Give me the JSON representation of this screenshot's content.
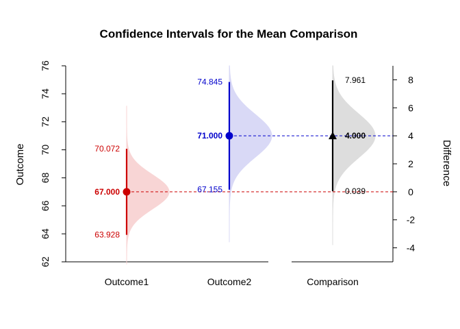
{
  "chart_data": {
    "type": "interval",
    "title": "Confidence Intervals for the Mean Comparison",
    "ylabel": "Outcome",
    "ylabel_right": "Difference",
    "ylim": [
      62,
      76
    ],
    "yticks": [
      "62",
      "64",
      "66",
      "68",
      "70",
      "72",
      "74",
      "76"
    ],
    "ylim_right": [
      -5,
      9
    ],
    "yticks_right": [
      "-4",
      "-2",
      "0",
      "2",
      "4",
      "6",
      "8"
    ],
    "categories": [
      "Outcome1",
      "Outcome2",
      "Comparison"
    ],
    "series": [
      {
        "category": "Outcome1",
        "mean": 67.0,
        "lower": 63.928,
        "upper": 70.072,
        "mean_label": "67.000",
        "lower_label": "63.928",
        "upper_label": "70.072",
        "color": "#cc0000",
        "fill": "#f8d3d3",
        "marker": "circle",
        "density_sd": 1.23,
        "density_extent": [
          61.85,
          73.15
        ]
      },
      {
        "category": "Outcome2",
        "mean": 71.0,
        "lower": 67.155,
        "upper": 74.845,
        "mean_label": "71.000",
        "lower_label": "67.155",
        "upper_label": "74.845",
        "color": "#0000cc",
        "fill": "#d8d8f6",
        "marker": "circle",
        "density_sd": 1.54,
        "density_extent": [
          63.4,
          76.0
        ]
      },
      {
        "category": "Comparison",
        "mean": 4.0,
        "lower": 0.039,
        "upper": 7.961,
        "mean_label": "4.000",
        "lower_label": "0.039",
        "upper_label": "7.961",
        "color": "#000000",
        "fill": "#dcdcdc",
        "marker": "triangle",
        "density_sd": 1.58,
        "density_extent": [
          -3.8,
          9.0
        ],
        "axis": "right"
      }
    ],
    "reference_lines": [
      {
        "value": 67.0,
        "color": "#cc0000",
        "style": "dashed"
      },
      {
        "value": 71.0,
        "color": "#0000cc",
        "style": "dashed"
      }
    ],
    "grid": false,
    "legend": "none"
  }
}
